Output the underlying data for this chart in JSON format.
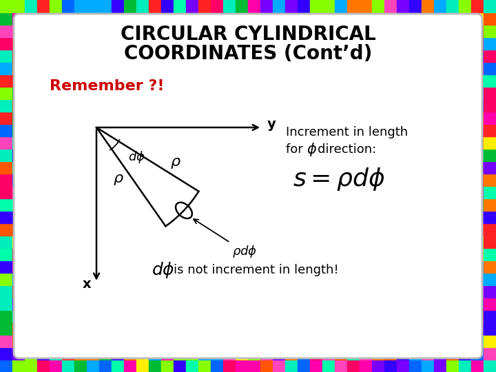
{
  "title_line1": "CIRCULAR CYLINDRICAL",
  "title_line2": "COORDINATES (Cont’d)",
  "remember_text": "Remember ?!",
  "increment_text_line1": "Increment in length",
  "increment_for": "for ",
  "increment_phi_label": "$\\phi$",
  "increment_direction": "direction:",
  "formula": "$s = \\rho d\\phi$",
  "bottom_phi": "$d\\phi$",
  "bottom_text": " is not increment in length!",
  "title_fontsize": 20,
  "remember_fontsize": 16,
  "body_fontsize": 13,
  "formula_fontsize": 22,
  "title_color": "#000000",
  "remember_color": "#cc0000",
  "body_color": "#000000",
  "border_colors": [
    "#ff2222",
    "#ff7700",
    "#ffee00",
    "#00bb33",
    "#0066ff",
    "#7700ff",
    "#ff44bb",
    "#00eebb",
    "#ff5500",
    "#3300ff",
    "#ff0066",
    "#00aaff",
    "#88ff00",
    "#ff00aa",
    "#00ffaa"
  ],
  "tile_size": 18,
  "fig_width": 7.2,
  "fig_height": 5.4,
  "dpi": 100
}
